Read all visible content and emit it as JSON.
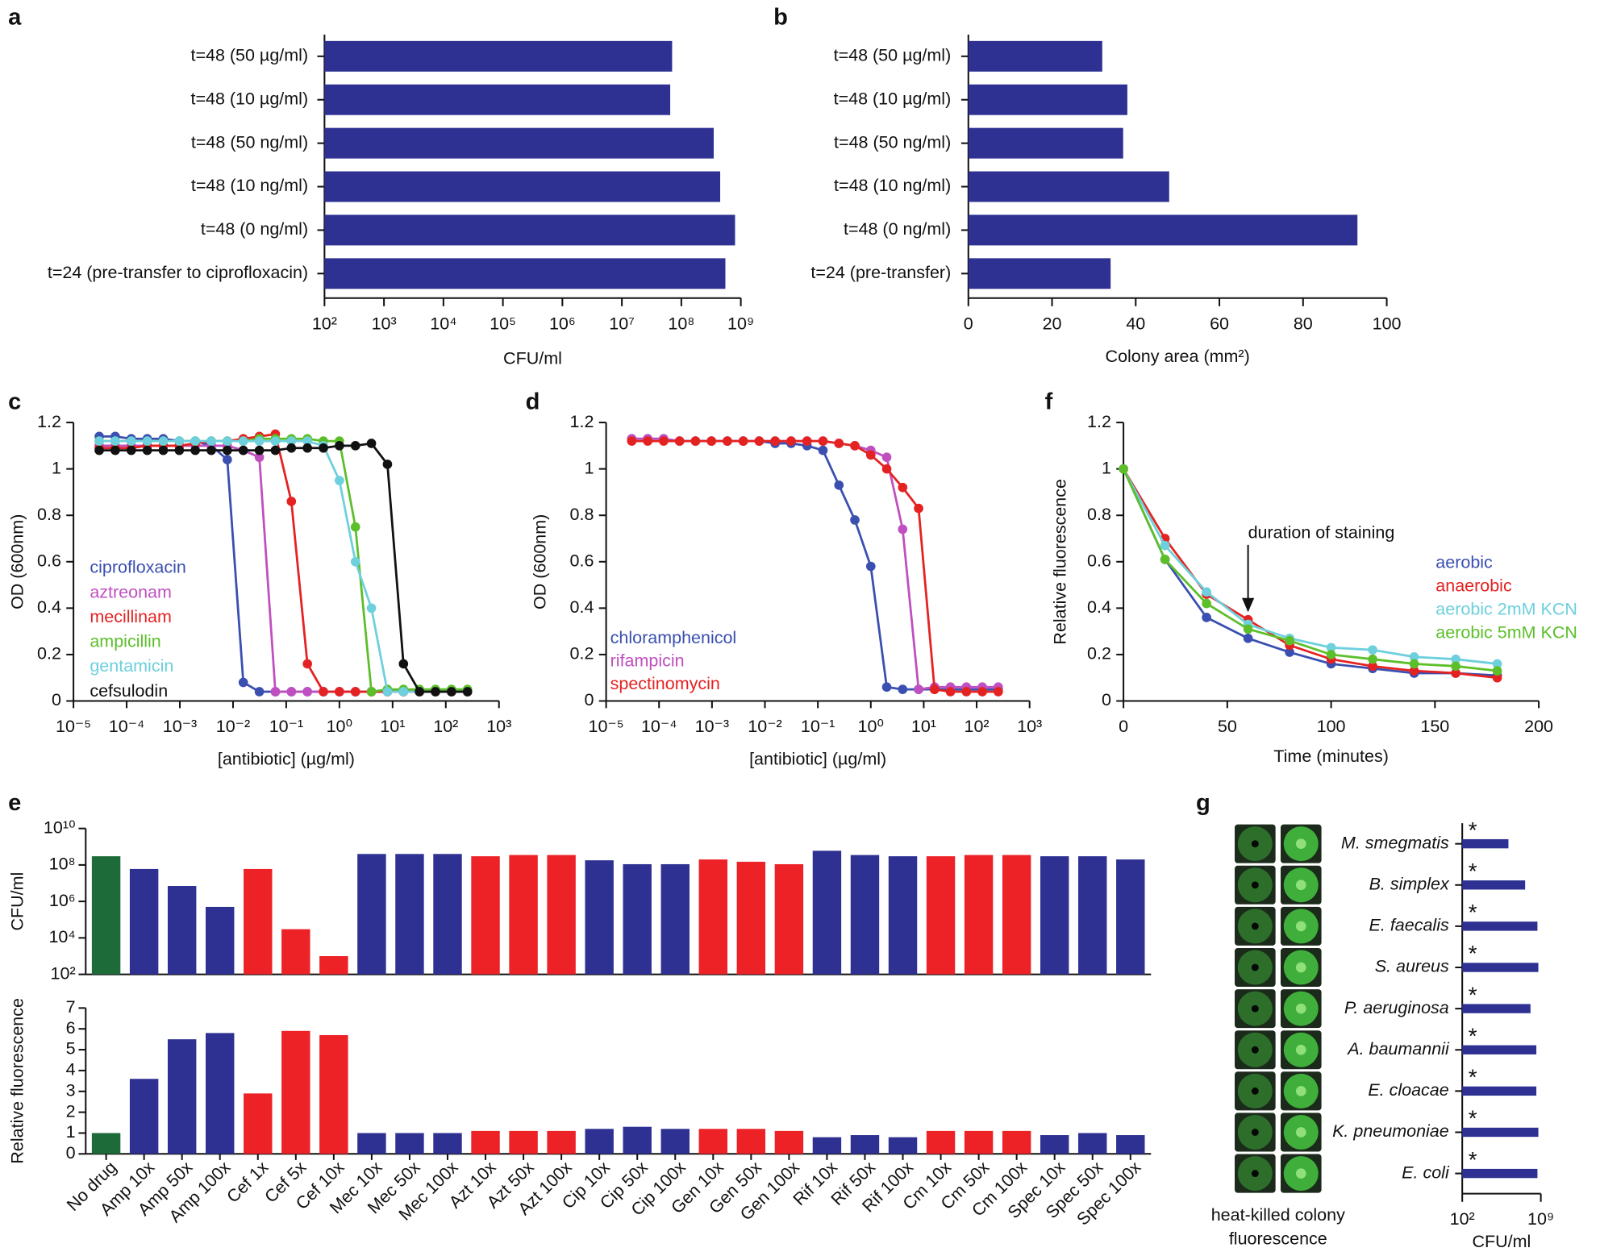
{
  "chart_data": [
    {
      "panel": "a",
      "type": "hbar",
      "color": "#2e3192",
      "xscale": "log",
      "categories": [
        "t=48 (50 µg/ml)",
        "t=48 (10 µg/ml)",
        "t=48 (50 ng/ml)",
        "t=48 (10 ng/ml)",
        "t=48 (0 ng/ml)",
        "t=24 (pre-transfer to ciprofloxacin)"
      ],
      "values": [
        70000000,
        65000000,
        350000000,
        450000000,
        800000000,
        550000000
      ],
      "xlabel": "CFU/ml",
      "xlim": [
        100,
        1000000000
      ],
      "xticks": [
        {
          "value": 100,
          "label": "10²"
        },
        {
          "value": 1000,
          "label": "10³"
        },
        {
          "value": 10000,
          "label": "10⁴"
        },
        {
          "value": 100000,
          "label": "10⁵"
        },
        {
          "value": 1000000,
          "label": "10⁶"
        },
        {
          "value": 10000000,
          "label": "10⁷"
        },
        {
          "value": 100000000,
          "label": "10⁸"
        },
        {
          "value": 1000000000,
          "label": "10⁹"
        }
      ]
    },
    {
      "panel": "b",
      "type": "hbar",
      "color": "#2e3192",
      "xscale": "linear",
      "categories": [
        "t=48 (50 µg/ml)",
        "t=48 (10 µg/ml)",
        "t=48 (50 ng/ml)",
        "t=48 (10 ng/ml)",
        "t=48 (0 ng/ml)",
        "t=24 (pre-transfer)"
      ],
      "values": [
        32,
        38,
        37,
        48,
        93,
        34
      ],
      "xlabel": "Colony area (mm²)",
      "xlim": [
        0,
        100
      ],
      "xticks": [
        0,
        20,
        40,
        60,
        80,
        100
      ]
    },
    {
      "panel": "c",
      "type": "line",
      "xscale": "log",
      "x": [
        3.05e-05,
        6.1e-05,
        0.000122,
        0.000244,
        0.000488,
        0.000977,
        0.00195,
        0.0039,
        0.0078,
        0.0156,
        0.03125,
        0.0625,
        0.125,
        0.25,
        0.5,
        1,
        2,
        4,
        8,
        16,
        32,
        64,
        128,
        256
      ],
      "series": [
        {
          "name": "ciprofloxacin",
          "color": "#3a4fb0",
          "values": [
            1.14,
            1.14,
            1.13,
            1.13,
            1.13,
            1.12,
            1.12,
            1.1,
            1.04,
            0.08,
            0.04,
            0.04,
            0.04,
            0.04,
            0.04,
            0.04,
            0.04,
            0.04,
            0.04,
            0.04,
            0.04,
            0.04,
            0.04,
            0.04
          ]
        },
        {
          "name": "aztreonam",
          "color": "#c04fc0",
          "values": [
            1.1,
            1.1,
            1.1,
            1.1,
            1.1,
            1.1,
            1.1,
            1.1,
            1.1,
            1.08,
            1.05,
            0.04,
            0.04,
            0.04,
            0.04,
            0.04,
            0.04,
            0.04,
            0.04,
            0.04,
            0.04,
            0.04,
            0.04,
            0.04
          ]
        },
        {
          "name": "mecillinam",
          "color": "#e52222",
          "values": [
            1.09,
            1.09,
            1.09,
            1.1,
            1.1,
            1.1,
            1.11,
            1.12,
            1.12,
            1.13,
            1.14,
            1.15,
            0.86,
            0.16,
            0.04,
            0.04,
            0.04,
            0.04,
            0.04,
            0.04,
            0.04,
            0.04,
            0.04,
            0.04
          ]
        },
        {
          "name": "ampicillin",
          "color": "#5cbf2a",
          "values": [
            1.12,
            1.12,
            1.12,
            1.12,
            1.12,
            1.12,
            1.12,
            1.12,
            1.12,
            1.12,
            1.13,
            1.13,
            1.13,
            1.13,
            1.12,
            1.12,
            0.75,
            0.04,
            0.05,
            0.05,
            0.05,
            0.05,
            0.05,
            0.05
          ]
        },
        {
          "name": "gentamicin",
          "color": "#6dd0dc",
          "values": [
            1.12,
            1.12,
            1.12,
            1.12,
            1.12,
            1.12,
            1.12,
            1.12,
            1.12,
            1.12,
            1.12,
            1.12,
            1.12,
            1.12,
            1.1,
            0.95,
            0.6,
            0.4,
            0.04,
            0.04,
            0.04,
            0.04,
            0.04,
            0.04
          ]
        },
        {
          "name": "cefsulodin",
          "color": "#111111",
          "values": [
            1.08,
            1.08,
            1.08,
            1.08,
            1.08,
            1.08,
            1.08,
            1.08,
            1.08,
            1.08,
            1.08,
            1.08,
            1.09,
            1.09,
            1.09,
            1.1,
            1.1,
            1.11,
            1.02,
            0.16,
            0.04,
            0.04,
            0.04,
            0.04
          ]
        }
      ],
      "xlabel": "[antibiotic] (µg/ml)",
      "ylabel": "OD (600nm)",
      "xlim": [
        1e-05,
        1000
      ],
      "xticks": [
        {
          "value": 1e-05,
          "label": "10⁻⁵"
        },
        {
          "value": 0.0001,
          "label": "10⁻⁴"
        },
        {
          "value": 0.001,
          "label": "10⁻³"
        },
        {
          "value": 0.01,
          "label": "10⁻²"
        },
        {
          "value": 0.1,
          "label": "10⁻¹"
        },
        {
          "value": 1,
          "label": "10⁰"
        },
        {
          "value": 10,
          "label": "10¹"
        },
        {
          "value": 100,
          "label": "10²"
        },
        {
          "value": 1000,
          "label": "10³"
        }
      ],
      "ylim": [
        0,
        1.2
      ],
      "yticks": [
        0,
        0.2,
        0.4,
        0.6,
        0.8,
        1,
        1.2
      ]
    },
    {
      "panel": "d",
      "type": "line",
      "xscale": "log",
      "x": [
        3.05e-05,
        6.1e-05,
        0.000122,
        0.000244,
        0.000488,
        0.000977,
        0.00195,
        0.0039,
        0.0078,
        0.0156,
        0.03125,
        0.0625,
        0.125,
        0.25,
        0.5,
        1,
        2,
        4,
        8,
        16,
        32,
        64,
        128,
        256
      ],
      "series": [
        {
          "name": "chloramphenicol",
          "color": "#3a4fb0",
          "values": [
            1.13,
            1.13,
            1.13,
            1.12,
            1.12,
            1.12,
            1.12,
            1.12,
            1.12,
            1.11,
            1.11,
            1.1,
            1.08,
            0.93,
            0.78,
            0.58,
            0.06,
            0.05,
            0.05,
            0.05,
            0.05,
            0.05,
            0.05,
            0.05
          ]
        },
        {
          "name": "rifampicin",
          "color": "#c04fc0",
          "values": [
            1.13,
            1.13,
            1.13,
            1.12,
            1.12,
            1.12,
            1.12,
            1.12,
            1.12,
            1.12,
            1.12,
            1.12,
            1.12,
            1.11,
            1.1,
            1.08,
            1.05,
            0.74,
            0.05,
            0.06,
            0.06,
            0.06,
            0.06,
            0.06
          ]
        },
        {
          "name": "spectinomycin",
          "color": "#e52222",
          "values": [
            1.12,
            1.12,
            1.12,
            1.12,
            1.12,
            1.12,
            1.12,
            1.12,
            1.12,
            1.12,
            1.12,
            1.12,
            1.12,
            1.11,
            1.1,
            1.06,
            1.0,
            0.92,
            0.83,
            0.05,
            0.04,
            0.04,
            0.04,
            0.04
          ]
        }
      ],
      "xlabel": "[antibiotic] (µg/ml)",
      "ylabel": "OD (600nm)",
      "xlim": [
        1e-05,
        1000
      ],
      "xticks": [
        {
          "value": 1e-05,
          "label": "10⁻⁵"
        },
        {
          "value": 0.0001,
          "label": "10⁻⁴"
        },
        {
          "value": 0.001,
          "label": "10⁻³"
        },
        {
          "value": 0.01,
          "label": "10⁻²"
        },
        {
          "value": 0.1,
          "label": "10⁻¹"
        },
        {
          "value": 1,
          "label": "10⁰"
        },
        {
          "value": 10,
          "label": "10¹"
        },
        {
          "value": 100,
          "label": "10²"
        },
        {
          "value": 1000,
          "label": "10³"
        }
      ],
      "ylim": [
        0,
        1.2
      ],
      "yticks": [
        0,
        0.2,
        0.4,
        0.6,
        0.8,
        1,
        1.2
      ]
    },
    {
      "panel": "f",
      "type": "line",
      "xscale": "linear",
      "x": [
        0,
        20,
        40,
        60,
        80,
        100,
        120,
        140,
        160,
        180
      ],
      "series": [
        {
          "name": "aerobic",
          "color": "#3a4fb0",
          "values": [
            1,
            0.61,
            0.36,
            0.27,
            0.21,
            0.16,
            0.14,
            0.12,
            0.12,
            0.11
          ]
        },
        {
          "name": "anaerobic",
          "color": "#e52222",
          "values": [
            1,
            0.7,
            0.46,
            0.35,
            0.24,
            0.18,
            0.15,
            0.13,
            0.12,
            0.1
          ]
        },
        {
          "name": "aerobic 2mM KCN",
          "color": "#6dd0dc",
          "values": [
            1,
            0.67,
            0.47,
            0.33,
            0.27,
            0.23,
            0.22,
            0.19,
            0.18,
            0.16
          ]
        },
        {
          "name": "aerobic 5mM KCN",
          "color": "#5cbf2a",
          "values": [
            1,
            0.61,
            0.42,
            0.31,
            0.26,
            0.2,
            0.18,
            0.16,
            0.15,
            0.13
          ]
        }
      ],
      "annotation": {
        "text": "duration of staining",
        "x": 60
      },
      "xlabel": "Time (minutes)",
      "ylabel": "Relative fluorescence",
      "xlim": [
        0,
        200
      ],
      "xticks": [
        0,
        50,
        100,
        150,
        200
      ],
      "ylim": [
        0,
        1.2
      ],
      "yticks": [
        0,
        0.2,
        0.4,
        0.6,
        0.8,
        1,
        1.2
      ]
    },
    {
      "panel": "e",
      "type": "bar",
      "categories": [
        "No drug",
        "Amp 10x",
        "Amp 50x",
        "Amp 100x",
        "Cef 1x",
        "Cef 5x",
        "Cef 10x",
        "Mec 10x",
        "Mec 50x",
        "Mec 100x",
        "Azt 10x",
        "Azt 50x",
        "Azt 100x",
        "Cip 10x",
        "Cip 50x",
        "Cip 100x",
        "Gen 10x",
        "Gen 50x",
        "Gen 100x",
        "Rif 10x",
        "Rif 50x",
        "Rif 100x",
        "Cm 10x",
        "Cm 50x",
        "Cm 100x",
        "Spec 10x",
        "Spec 50x",
        "Spec 100x"
      ],
      "colors": [
        "#1e6b3a",
        "#2e3192",
        "#2e3192",
        "#2e3192",
        "#ec2227",
        "#ec2227",
        "#ec2227",
        "#2e3192",
        "#2e3192",
        "#2e3192",
        "#ec2227",
        "#ec2227",
        "#ec2227",
        "#2e3192",
        "#2e3192",
        "#2e3192",
        "#ec2227",
        "#ec2227",
        "#ec2227",
        "#2e3192",
        "#2e3192",
        "#2e3192",
        "#ec2227",
        "#ec2227",
        "#ec2227",
        "#2e3192",
        "#2e3192",
        "#2e3192"
      ],
      "subplots": [
        {
          "ylabel": "CFU/ml",
          "yscale": "log",
          "values": [
            300000000,
            60000000,
            7000000,
            500000,
            60000000,
            30000,
            1000,
            400000000,
            400000000,
            400000000,
            300000000,
            350000000,
            350000000,
            180000000,
            110000000,
            110000000,
            200000000,
            150000000,
            110000000,
            600000000,
            350000000,
            300000000,
            300000000,
            350000000,
            350000000,
            300000000,
            300000000,
            200000000
          ],
          "ylim": [
            100,
            10000000000
          ],
          "yticks": [
            {
              "value": 100,
              "label": "10²"
            },
            {
              "value": 10000,
              "label": "10⁴"
            },
            {
              "value": 1000000,
              "label": "10⁶"
            },
            {
              "value": 100000000,
              "label": "10⁸"
            },
            {
              "value": 10000000000,
              "label": "10¹⁰"
            }
          ]
        },
        {
          "ylabel": "Relative fluorescence",
          "yscale": "linear",
          "values": [
            1,
            3.6,
            5.5,
            5.8,
            2.9,
            5.9,
            5.7,
            1,
            1,
            1,
            1.1,
            1.1,
            1.1,
            1.2,
            1.3,
            1.2,
            1.2,
            1.2,
            1.1,
            0.8,
            0.9,
            0.8,
            1.1,
            1.1,
            1.1,
            0.9,
            1,
            0.9
          ],
          "ylim": [
            0,
            7
          ],
          "yticks": [
            0,
            1,
            2,
            3,
            4,
            5,
            6,
            7
          ]
        }
      ]
    },
    {
      "panel": "g",
      "type": "hbar",
      "color": "#2e3192",
      "xscale": "log",
      "categories": [
        "M. smegmatis",
        "B. simplex",
        "E. faecalis",
        "S. aureus",
        "P. aeruginosa",
        "A. baumannii",
        "E. cloacae",
        "K. pneumoniae",
        "E. coli"
      ],
      "values": [
        1300000,
        40000000,
        500000000,
        600000000,
        120000000,
        400000000,
        400000000,
        600000000,
        500000000
      ],
      "annotations": [
        "*",
        "*",
        "*",
        "*",
        "*",
        "*",
        "*",
        "*",
        "*"
      ],
      "image_caption": [
        "heat-killed colony",
        "fluorescence"
      ],
      "xlabel": "CFU/ml",
      "xlim": [
        100,
        1000000000
      ],
      "xticks": [
        {
          "value": 100,
          "label": "10²"
        },
        {
          "value": 1000000000,
          "label": "10⁹"
        }
      ]
    }
  ]
}
